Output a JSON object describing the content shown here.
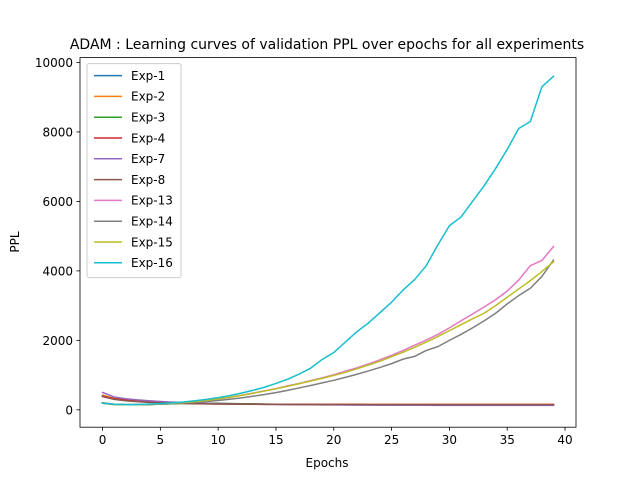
{
  "chart_data": {
    "type": "line",
    "title": "ADAM : Learning curves of validation PPL over epochs for all experiments",
    "xlabel": "Epochs",
    "ylabel": "PPL",
    "xlim": [
      -1.95,
      40.95
    ],
    "ylim": [
      -500,
      10140
    ],
    "xticks": [
      0,
      5,
      10,
      15,
      20,
      25,
      30,
      35,
      40
    ],
    "yticks": [
      0,
      2000,
      4000,
      6000,
      8000,
      10000
    ],
    "grid": false,
    "legend_position": "top-left",
    "x": [
      0,
      1,
      2,
      3,
      4,
      5,
      6,
      7,
      8,
      9,
      10,
      11,
      12,
      13,
      14,
      15,
      16,
      17,
      18,
      19,
      20,
      21,
      22,
      23,
      24,
      25,
      26,
      27,
      28,
      29,
      30,
      31,
      32,
      33,
      34,
      35,
      36,
      37,
      38,
      39
    ],
    "series": [
      {
        "name": "Exp-1",
        "color": "#1f77b4",
        "values": [
          200,
          160,
          150,
          150,
          155,
          165,
          175,
          185,
          190,
          190,
          185,
          180,
          175,
          170,
          165,
          160,
          158,
          156,
          154,
          152,
          150,
          148,
          146,
          145,
          144,
          143,
          142,
          141,
          140,
          140,
          139,
          139,
          138,
          138,
          138,
          137,
          137,
          137,
          137,
          136
        ]
      },
      {
        "name": "Exp-2",
        "color": "#ff7f0e",
        "values": [
          420,
          330,
          285,
          255,
          235,
          215,
          200,
          190,
          182,
          176,
          172,
          168,
          165,
          163,
          161,
          160,
          159,
          158,
          157,
          157,
          156,
          156,
          156,
          155,
          155,
          155,
          155,
          155,
          155,
          155,
          155,
          155,
          155,
          155,
          155,
          155,
          155,
          155,
          155,
          155
        ]
      },
      {
        "name": "Exp-3",
        "color": "#2ca02c",
        "values": [
          200,
          160,
          150,
          150,
          155,
          165,
          175,
          185,
          190,
          190,
          185,
          180,
          175,
          170,
          165,
          160,
          158,
          156,
          154,
          152,
          150,
          148,
          146,
          145,
          144,
          143,
          142,
          141,
          140,
          140,
          139,
          139,
          138,
          138,
          138,
          137,
          137,
          137,
          137,
          136
        ]
      },
      {
        "name": "Exp-4",
        "color": "#d62728",
        "values": [
          400,
          320,
          280,
          250,
          230,
          212,
          198,
          188,
          180,
          175,
          171,
          167,
          165,
          163,
          161,
          160,
          159,
          158,
          157,
          157,
          156,
          156,
          156,
          155,
          155,
          155,
          155,
          155,
          155,
          155,
          155,
          155,
          155,
          155,
          155,
          155,
          155,
          155,
          155,
          155
        ]
      },
      {
        "name": "Exp-7",
        "color": "#9467bd",
        "values": [
          500,
          370,
          320,
          285,
          260,
          240,
          222,
          210,
          200,
          190,
          180,
          172,
          166,
          161,
          157,
          153,
          150,
          147,
          145,
          143,
          141,
          139,
          137,
          136,
          135,
          134,
          133,
          132,
          131,
          130,
          130,
          129,
          129,
          128,
          128,
          128,
          127,
          127,
          127,
          127
        ]
      },
      {
        "name": "Exp-8",
        "color": "#8c564b",
        "values": [
          380,
          300,
          260,
          235,
          215,
          200,
          190,
          182,
          176,
          171,
          167,
          164,
          162,
          160,
          158,
          157,
          156,
          155,
          154,
          153,
          153,
          152,
          152,
          151,
          151,
          151,
          150,
          150,
          150,
          150,
          150,
          150,
          150,
          150,
          150,
          150,
          150,
          150,
          150,
          150
        ]
      },
      {
        "name": "Exp-13",
        "color": "#e377c2",
        "values": [
          190,
          155,
          145,
          150,
          160,
          170,
          185,
          205,
          230,
          265,
          310,
          360,
          420,
          480,
          545,
          610,
          690,
          760,
          840,
          920,
          1010,
          1110,
          1210,
          1320,
          1440,
          1570,
          1710,
          1860,
          2010,
          2170,
          2360,
          2560,
          2760,
          2960,
          3170,
          3420,
          3740,
          4150,
          4300,
          4700
        ]
      },
      {
        "name": "Exp-14",
        "color": "#7f7f7f",
        "values": [
          190,
          155,
          145,
          148,
          155,
          165,
          178,
          195,
          215,
          240,
          270,
          305,
          345,
          390,
          440,
          495,
          560,
          630,
          700,
          775,
          850,
          935,
          1025,
          1120,
          1220,
          1330,
          1460,
          1540,
          1710,
          1820,
          2000,
          2170,
          2360,
          2560,
          2780,
          3050,
          3290,
          3500,
          3840,
          4310
        ]
      },
      {
        "name": "Exp-15",
        "color": "#bcbd22",
        "values": [
          190,
          155,
          145,
          150,
          160,
          172,
          188,
          208,
          235,
          270,
          315,
          360,
          415,
          475,
          540,
          605,
          680,
          750,
          830,
          905,
          990,
          1080,
          1180,
          1290,
          1400,
          1530,
          1660,
          1800,
          1950,
          2110,
          2280,
          2450,
          2620,
          2780,
          3000,
          3240,
          3480,
          3720,
          3980,
          4260
        ]
      },
      {
        "name": "Exp-16",
        "color": "#17becf",
        "values": [
          190,
          160,
          150,
          155,
          165,
          180,
          200,
          225,
          260,
          300,
          350,
          410,
          480,
          560,
          650,
          760,
          880,
          1030,
          1200,
          1450,
          1650,
          1950,
          2250,
          2500,
          2800,
          3100,
          3450,
          3750,
          4150,
          4750,
          5300,
          5550,
          6000,
          6450,
          6950,
          7500,
          8100,
          8300,
          9300,
          9600
        ]
      }
    ]
  }
}
